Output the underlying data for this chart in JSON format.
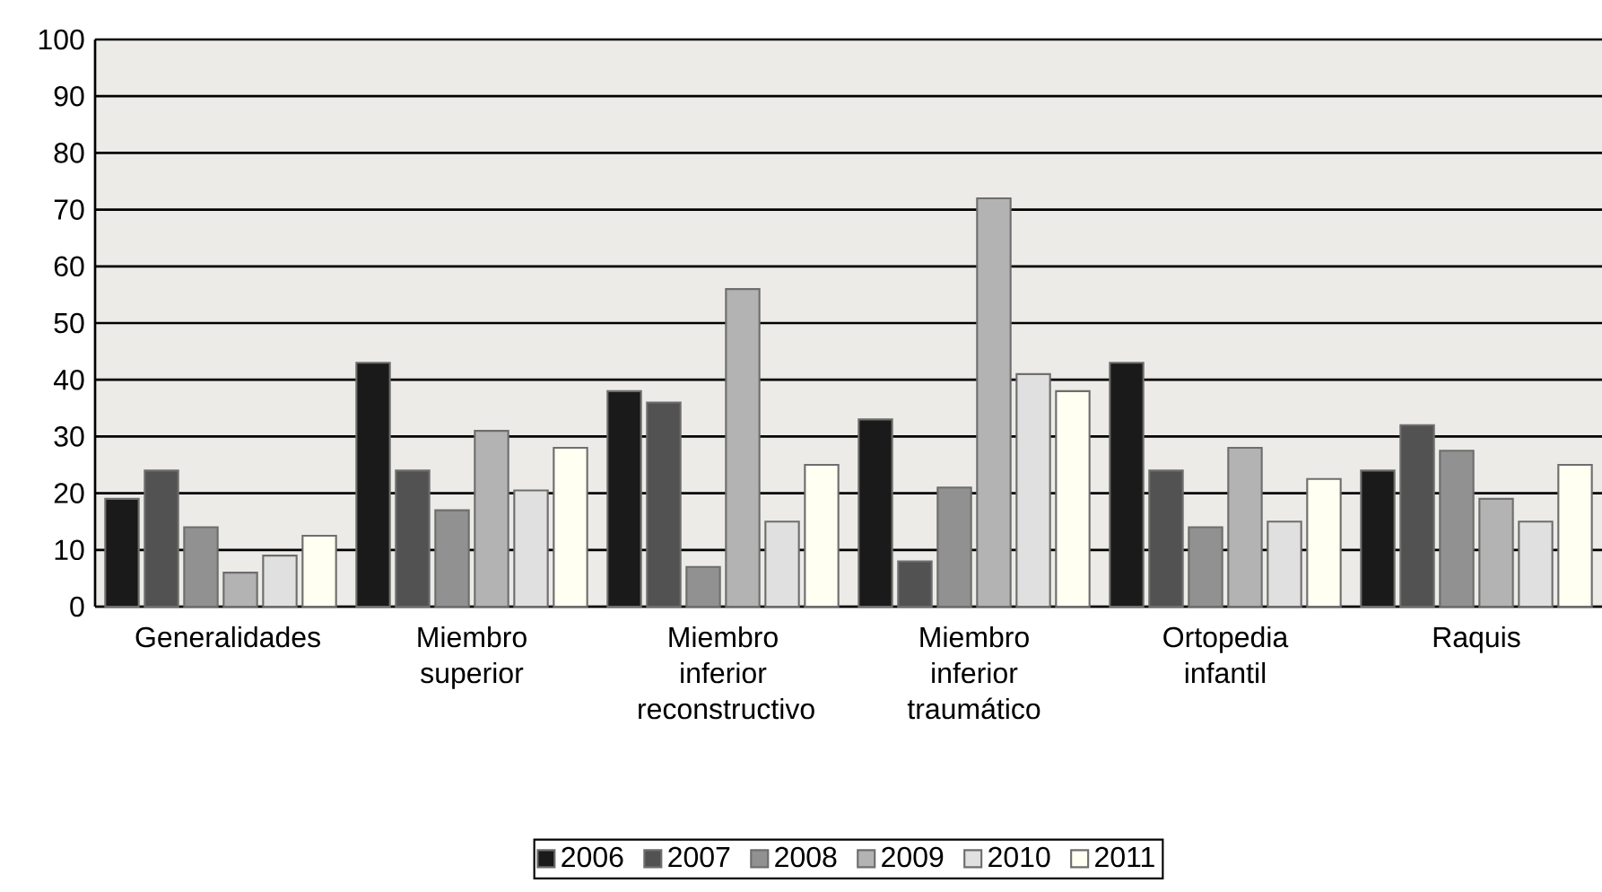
{
  "chart_data": {
    "type": "bar",
    "categories": [
      "Generalidades",
      "Miembro superior",
      "Miembro inferior reconstructivo",
      "Miembro inferior traumático",
      "Ortopedia infantil",
      "Raquis"
    ],
    "series": [
      {
        "name": "2006",
        "color": "#1a1a1a",
        "values": [
          19,
          43,
          38,
          33,
          43,
          24
        ]
      },
      {
        "name": "2007",
        "color": "#525252",
        "values": [
          24,
          24,
          36,
          8,
          24,
          32
        ]
      },
      {
        "name": "2008",
        "color": "#919191",
        "values": [
          14,
          17,
          7,
          21,
          14,
          27.5
        ]
      },
      {
        "name": "2009",
        "color": "#b3b3b3",
        "values": [
          6,
          31,
          56,
          72,
          28,
          19
        ]
      },
      {
        "name": "2010",
        "color": "#e0e0e0",
        "values": [
          9,
          20.5,
          15,
          41,
          15,
          15
        ]
      },
      {
        "name": "2011",
        "color": "#fffff2",
        "values": [
          12.5,
          28,
          25,
          38,
          22.5,
          25
        ]
      }
    ],
    "ylim": [
      0,
      100
    ],
    "yticks": [
      0,
      10,
      20,
      30,
      40,
      50,
      60,
      70,
      80,
      90,
      100
    ],
    "grid": "y",
    "legend": "bottom"
  }
}
